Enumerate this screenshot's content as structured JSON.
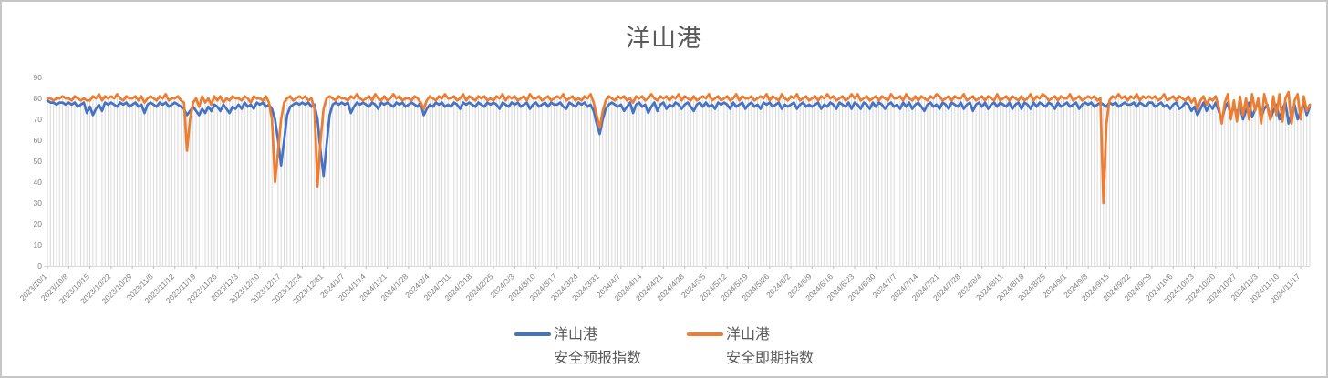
{
  "window": {
    "background": "#ffffff",
    "border_color": "#c6c6c6"
  },
  "chart": {
    "title_color": "#595959",
    "axis_text_color": "#808080",
    "gridline_color": "#d9d9d9",
    "legend": [
      {
        "line1": "洋山港",
        "line2": "安全预报指数",
        "color": "#4472C4"
      },
      {
        "line1": "洋山港",
        "line2": "安全即期指数",
        "color": "#ED7D31"
      }
    ]
  },
  "chart_data": {
    "type": "line",
    "title": "洋山港",
    "x_start_date": "2023/10/1",
    "x_tick_interval_days": 7,
    "x_tick_labels": [
      "2023/10/1",
      "2023/10/8",
      "2023/10/15",
      "2023/10/22",
      "2023/10/29",
      "2023/11/5",
      "2023/11/12",
      "2023/11/19",
      "2023/11/26",
      "2023/12/3",
      "2023/12/10",
      "2023/12/17",
      "2023/12/24",
      "2023/12/31",
      "2024/1/7",
      "2024/1/14",
      "2024/1/21",
      "2024/1/28",
      "2024/2/4",
      "2024/2/11",
      "2024/2/18",
      "2024/2/25",
      "2024/3/3",
      "2024/3/10",
      "2024/3/17",
      "2024/3/24",
      "2024/3/31",
      "2024/4/7",
      "2024/4/14",
      "2024/4/21",
      "2024/4/28",
      "2024/5/5",
      "2024/5/12",
      "2024/5/19",
      "2024/5/26",
      "2024/6/2",
      "2024/6/9",
      "2024/6/16",
      "2024/6/23",
      "2024/6/30",
      "2024/7/7",
      "2024/7/14",
      "2024/7/21",
      "2024/7/28",
      "2024/8/4",
      "2024/8/11",
      "2024/8/18",
      "2024/8/25",
      "2024/9/1",
      "2024/9/8",
      "2024/9/15",
      "2024/9/22",
      "2024/9/29",
      "2024/10/6",
      "2024/10/13",
      "2024/10/20",
      "2024/10/27",
      "2024/11/3",
      "2024/11/10",
      "2024/11/17"
    ],
    "ylim": [
      0,
      90
    ],
    "y_ticks": [
      0,
      10,
      20,
      30,
      40,
      50,
      60,
      70,
      80,
      90
    ],
    "grid": "daily-vertical-droplines",
    "legend_position": "bottom",
    "series": [
      {
        "name": "洋山港安全预报指数",
        "color": "#4472C4",
        "values": [
          79,
          78,
          78,
          77,
          78,
          78,
          77,
          78,
          77,
          78,
          76,
          77,
          78,
          73,
          76,
          72,
          75,
          77,
          74,
          78,
          77,
          78,
          77,
          76,
          78,
          77,
          78,
          76,
          77,
          78,
          76,
          77,
          73,
          77,
          78,
          77,
          76,
          78,
          77,
          78,
          76,
          77,
          78,
          77,
          76,
          75,
          72,
          74,
          76,
          74,
          72,
          75,
          73,
          76,
          74,
          77,
          76,
          74,
          77,
          75,
          73,
          76,
          75,
          77,
          75,
          78,
          76,
          77,
          75,
          78,
          77,
          78,
          76,
          77,
          75,
          70,
          60,
          48,
          60,
          72,
          76,
          77,
          78,
          77,
          78,
          77,
          78,
          76,
          77,
          70,
          55,
          43,
          58,
          72,
          77,
          78,
          77,
          78,
          77,
          78,
          73,
          76,
          78,
          77,
          78,
          77,
          76,
          78,
          77,
          75,
          78,
          77,
          78,
          77,
          76,
          78,
          77,
          78,
          76,
          77,
          78,
          77,
          76,
          78,
          72,
          75,
          77,
          76,
          78,
          77,
          78,
          76,
          77,
          76,
          78,
          77,
          75,
          78,
          77,
          78,
          77,
          76,
          78,
          77,
          76,
          78,
          77,
          78,
          77,
          75,
          78,
          77,
          76,
          78,
          77,
          78,
          76,
          77,
          78,
          75,
          77,
          78,
          76,
          77,
          78,
          76,
          78,
          77,
          77,
          78,
          76,
          75,
          78,
          77,
          76,
          78,
          77,
          78,
          76,
          77,
          74,
          68,
          63,
          70,
          75,
          77,
          78,
          77,
          76,
          77,
          74,
          76,
          78,
          73,
          77,
          78,
          76,
          77,
          73,
          76,
          78,
          74,
          77,
          78,
          75,
          77,
          76,
          78,
          77,
          75,
          77,
          78,
          76,
          74,
          77,
          78,
          76,
          78,
          76,
          77,
          75,
          78,
          77,
          78,
          77,
          75,
          78,
          76,
          77,
          78,
          75,
          77,
          78,
          76,
          77,
          75,
          78,
          77,
          78,
          76,
          77,
          78,
          75,
          77,
          76,
          77,
          78,
          75,
          77,
          78,
          76,
          77,
          76,
          77,
          78,
          75,
          77,
          76,
          78,
          77,
          75,
          78,
          77,
          76,
          78,
          75,
          78,
          77,
          75,
          78,
          77,
          75,
          78,
          76,
          78,
          77,
          75,
          77,
          78,
          76,
          77,
          75,
          78,
          76,
          78,
          75,
          77,
          78,
          76,
          74,
          77,
          78,
          76,
          77,
          75,
          78,
          77,
          75,
          78,
          77,
          76,
          78,
          75,
          77,
          78,
          74,
          77,
          78,
          76,
          78,
          75,
          77,
          78,
          76,
          78,
          77,
          76,
          78,
          75,
          77,
          78,
          75,
          78,
          77,
          75,
          78,
          76,
          78,
          77,
          76,
          78,
          77,
          75,
          78,
          76,
          77,
          78,
          76,
          77,
          78,
          75,
          77,
          78,
          77,
          78,
          76,
          77,
          78,
          77,
          76,
          78,
          77,
          78,
          76,
          77,
          78,
          77,
          77,
          78,
          76,
          78,
          77,
          76,
          78,
          78,
          76,
          77,
          78,
          76,
          77,
          75,
          77,
          78,
          75,
          76,
          78,
          77,
          74,
          76,
          72,
          75,
          78,
          74,
          77,
          75,
          78,
          74,
          70,
          75,
          78,
          72,
          76,
          73,
          77,
          70,
          74,
          78,
          71,
          75,
          78,
          71,
          75,
          77,
          70,
          74,
          77,
          70,
          75,
          78,
          68,
          73,
          77,
          70,
          74,
          78,
          72,
          76
        ]
      },
      {
        "name": "洋山港安全即期指数",
        "color": "#ED7D31",
        "values": [
          80,
          80,
          79,
          80,
          80,
          81,
          80,
          80,
          79,
          81,
          80,
          79,
          80,
          79,
          79,
          81,
          80,
          82,
          79,
          81,
          80,
          81,
          80,
          82,
          80,
          79,
          81,
          80,
          80,
          81,
          79,
          81,
          78,
          80,
          81,
          80,
          79,
          81,
          80,
          82,
          79,
          80,
          80,
          81,
          79,
          78,
          55,
          70,
          78,
          80,
          76,
          81,
          78,
          80,
          77,
          81,
          79,
          81,
          78,
          80,
          79,
          81,
          80,
          80,
          79,
          81,
          80,
          78,
          81,
          80,
          80,
          79,
          81,
          78,
          70,
          40,
          55,
          70,
          78,
          80,
          81,
          79,
          80,
          81,
          80,
          81,
          79,
          80,
          75,
          38,
          60,
          75,
          80,
          81,
          80,
          79,
          81,
          80,
          80,
          79,
          81,
          80,
          82,
          80,
          79,
          80,
          81,
          79,
          82,
          80,
          79,
          81,
          79,
          80,
          82,
          80,
          81,
          79,
          80,
          80,
          79,
          81,
          80,
          78,
          75,
          79,
          81,
          80,
          79,
          81,
          80,
          82,
          80,
          80,
          81,
          79,
          80,
          82,
          79,
          81,
          80,
          79,
          81,
          80,
          81,
          79,
          80,
          79,
          81,
          80,
          82,
          79,
          81,
          80,
          81,
          79,
          80,
          81,
          79,
          82,
          80,
          80,
          81,
          79,
          80,
          81,
          79,
          80,
          81,
          80,
          82,
          79,
          80,
          81,
          79,
          80,
          79,
          81,
          80,
          82,
          78,
          72,
          66,
          74,
          79,
          81,
          80,
          79,
          81,
          80,
          81,
          79,
          80,
          78,
          81,
          80,
          81,
          79,
          80,
          82,
          80,
          79,
          81,
          80,
          81,
          79,
          81,
          80,
          82,
          79,
          81,
          80,
          79,
          81,
          79,
          80,
          81,
          80,
          82,
          79,
          80,
          81,
          79,
          80,
          81,
          79,
          80,
          82,
          79,
          81,
          80,
          80,
          81,
          79,
          80,
          81,
          80,
          82,
          79,
          81,
          80,
          79,
          82,
          80,
          79,
          81,
          80,
          82,
          79,
          80,
          81,
          79,
          80,
          81,
          79,
          81,
          80,
          82,
          80,
          81,
          79,
          80,
          81,
          79,
          80,
          82,
          80,
          82,
          79,
          80,
          81,
          79,
          80,
          81,
          79,
          81,
          80,
          79,
          82,
          80,
          80,
          81,
          79,
          82,
          80,
          79,
          81,
          79,
          81,
          80,
          79,
          81,
          80,
          82,
          81,
          79,
          80,
          81,
          79,
          81,
          80,
          80,
          82,
          79,
          80,
          81,
          79,
          80,
          81,
          79,
          81,
          80,
          79,
          82,
          79,
          80,
          81,
          79,
          81,
          80,
          79,
          81,
          79,
          80,
          82,
          79,
          81,
          80,
          82,
          81,
          79,
          80,
          81,
          79,
          81,
          80,
          80,
          82,
          79,
          80,
          81,
          79,
          80,
          81,
          80,
          81,
          79,
          80,
          30,
          68,
          79,
          81,
          80,
          82,
          80,
          81,
          79,
          81,
          80,
          82,
          79,
          81,
          80,
          81,
          80,
          81,
          79,
          80,
          82,
          79,
          80,
          81,
          79,
          81,
          80,
          79,
          81,
          78,
          80,
          75,
          79,
          81,
          77,
          80,
          79,
          81,
          76,
          68,
          78,
          82,
          70,
          79,
          69,
          81,
          72,
          80,
          70,
          82,
          74,
          80,
          68,
          82,
          76,
          70,
          81,
          72,
          82,
          69,
          80,
          83,
          68,
          79,
          82,
          70,
          81,
          74,
          77
        ]
      }
    ]
  }
}
